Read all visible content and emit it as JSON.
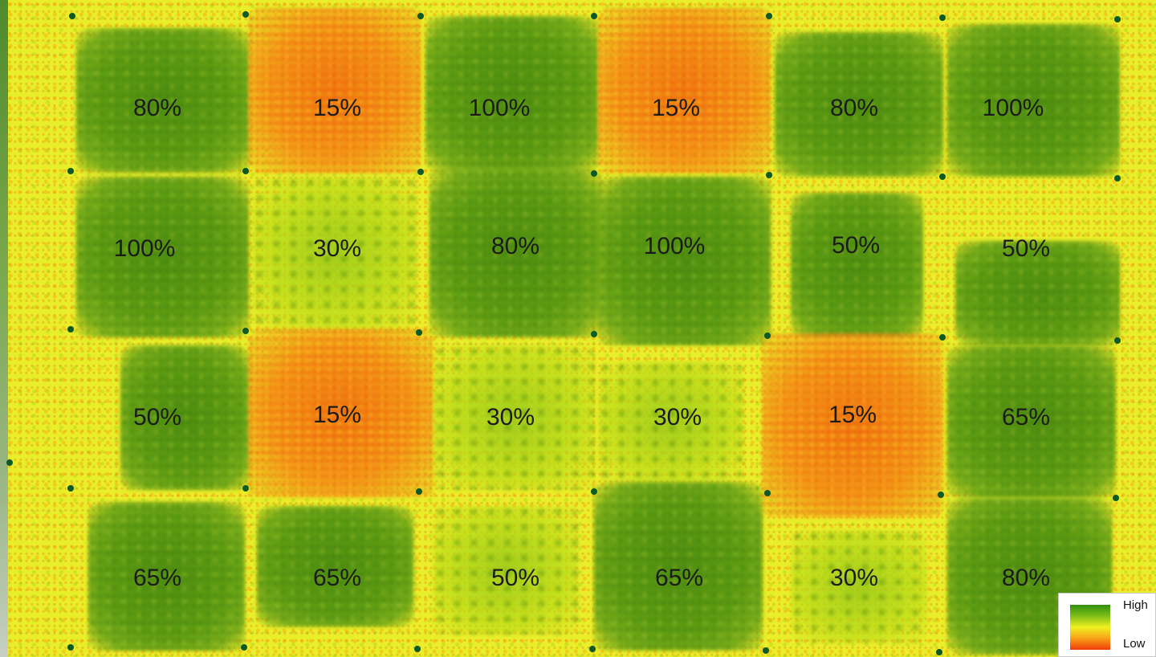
{
  "map": {
    "plots": [
      {
        "label": "80%",
        "level": "high"
      },
      {
        "label": "15%",
        "level": "low"
      },
      {
        "label": "100%",
        "level": "high"
      },
      {
        "label": "15%",
        "level": "low"
      },
      {
        "label": "80%",
        "level": "high"
      },
      {
        "label": "100%",
        "level": "high"
      },
      {
        "label": "100%",
        "level": "high"
      },
      {
        "label": "30%",
        "level": "mid"
      },
      {
        "label": "80%",
        "level": "high"
      },
      {
        "label": "100%",
        "level": "high"
      },
      {
        "label": "50%",
        "level": "high"
      },
      {
        "label": "50%",
        "level": "high"
      },
      {
        "label": "50%",
        "level": "high"
      },
      {
        "label": "15%",
        "level": "low"
      },
      {
        "label": "30%",
        "level": "mid"
      },
      {
        "label": "30%",
        "level": "mid"
      },
      {
        "label": "15%",
        "level": "low"
      },
      {
        "label": "65%",
        "level": "high"
      },
      {
        "label": "65%",
        "level": "high"
      },
      {
        "label": "65%",
        "level": "high"
      },
      {
        "label": "50%",
        "level": "mid"
      },
      {
        "label": "65%",
        "level": "high"
      },
      {
        "label": "30%",
        "level": "mid"
      },
      {
        "label": "80%",
        "level": "high"
      }
    ],
    "colors": {
      "high": "#4f8f10",
      "mid": "#a8d020",
      "low": "#f07a10",
      "marker": "#0d5a26"
    }
  },
  "legend": {
    "high_label": "High",
    "low_label": "Low"
  }
}
